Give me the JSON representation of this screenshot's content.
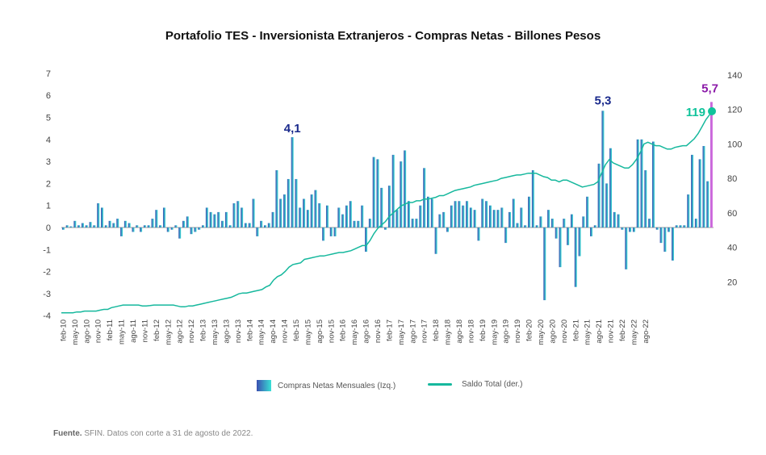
{
  "chart_data": {
    "type": "bar",
    "title": "Portafolio TES - Inversionista Extranjeros - Compras Netas - Billones Pesos",
    "x_tick_labels": [
      "feb-10",
      "may-10",
      "ago-10",
      "nov-10",
      "feb-11",
      "may-11",
      "ago-11",
      "nov-11",
      "feb-12",
      "may-12",
      "ago-12",
      "nov-12",
      "feb-13",
      "may-13",
      "ago-13",
      "nov-13",
      "feb-14",
      "may-14",
      "ago-14",
      "nov-14",
      "feb-15",
      "may-15",
      "ago-15",
      "nov-15",
      "feb-16",
      "may-16",
      "ago-16",
      "nov-16",
      "feb-17",
      "may-17",
      "ago-17",
      "nov-17",
      "feb-18",
      "may-18",
      "ago-18",
      "nov-18",
      "feb-19",
      "may-19",
      "ago-19",
      "nov-19",
      "feb-20",
      "may-20",
      "ago-20",
      "nov-20",
      "feb-21",
      "may-21",
      "ago-21",
      "nov-21",
      "feb-22",
      "may-22",
      "ago-22"
    ],
    "left_axis": {
      "ylim": [
        -4,
        7
      ],
      "ticks": [
        "-4",
        "-3",
        "-2",
        "-1",
        "0",
        "1",
        "2",
        "3",
        "4",
        "5",
        "6",
        "7"
      ]
    },
    "right_axis": {
      "ylim": [
        0,
        140
      ],
      "ticks": [
        "20",
        "40",
        "60",
        "80",
        "100",
        "120",
        "140"
      ]
    },
    "series": [
      {
        "name": "Compras Netas Mensuales (Izq.)",
        "axis": "left",
        "values": [
          -0.1,
          0.1,
          0.05,
          0.3,
          0.1,
          0.2,
          0.1,
          0.25,
          0.1,
          1.1,
          0.9,
          0.1,
          0.3,
          0.2,
          0.4,
          -0.4,
          0.3,
          0.2,
          -0.2,
          0.1,
          -0.2,
          0.1,
          0.1,
          0.4,
          0.8,
          0.1,
          0.9,
          -0.2,
          -0.1,
          0.1,
          -0.5,
          0.3,
          0.5,
          -0.3,
          -0.2,
          -0.1,
          0.1,
          0.9,
          0.7,
          0.6,
          0.7,
          0.3,
          0.7,
          0.1,
          1.1,
          1.2,
          0.9,
          0.2,
          0.2,
          1.3,
          -0.4,
          0.3,
          0.1,
          0.2,
          0.7,
          2.6,
          1.3,
          1.5,
          2.2,
          4.1,
          2.2,
          0.9,
          1.3,
          0.8,
          1.5,
          1.7,
          1.1,
          -0.6,
          1.0,
          -0.4,
          -0.4,
          0.9,
          0.6,
          1.0,
          1.2,
          0.3,
          0.3,
          1.0,
          -1.1,
          0.4,
          3.2,
          3.1,
          1.8,
          -0.1,
          1.9,
          3.3,
          0.8,
          3.0,
          3.5,
          1.2,
          0.4,
          0.4,
          1.0,
          2.7,
          1.4,
          1.3,
          -1.2,
          0.6,
          0.7,
          -0.2,
          1.0,
          1.2,
          1.2,
          1.0,
          1.2,
          0.9,
          0.8,
          -0.6,
          1.3,
          1.2,
          1.0,
          0.8,
          0.8,
          0.9,
          -0.7,
          0.7,
          1.3,
          0.2,
          0.9,
          0.1,
          1.4,
          2.6,
          0.1,
          0.5,
          -3.3,
          0.8,
          0.4,
          -0.5,
          -1.8,
          0.4,
          -0.8,
          0.6,
          -2.7,
          -1.3,
          0.5,
          1.4,
          -0.4,
          0.1,
          2.9,
          5.3,
          2.0,
          3.6,
          0.7,
          0.6,
          -0.1,
          -1.9,
          -0.2,
          -0.2,
          4.0,
          4.0,
          2.6,
          0.4,
          3.9,
          -0.1,
          -0.7,
          -1.1,
          -0.2,
          -1.5,
          0.1,
          0.1,
          0.1,
          1.5,
          3.3,
          0.4,
          3.1,
          3.7,
          2.1,
          5.7
        ]
      },
      {
        "name": "Saldo Total (der.)",
        "axis": "right",
        "type": "line",
        "values": [
          2,
          2,
          2,
          2,
          2.5,
          2.5,
          3,
          3,
          3,
          3,
          3.5,
          4,
          4,
          5,
          5.5,
          6,
          6.5,
          6.5,
          6.5,
          6.5,
          6.5,
          6,
          6,
          6.2,
          6.5,
          6.5,
          6.5,
          6.5,
          6.5,
          6.5,
          6,
          5.5,
          5.5,
          6,
          6,
          6.5,
          7,
          7.5,
          8,
          8.5,
          9,
          9.5,
          10,
          10.5,
          11,
          12,
          13,
          13.5,
          13.5,
          14,
          14.5,
          15,
          15.5,
          17,
          18,
          21,
          23,
          24,
          26,
          28.5,
          30,
          30.5,
          31,
          33,
          33.5,
          34,
          34.5,
          35,
          35,
          35.5,
          36,
          36.5,
          37,
          37,
          37.5,
          38,
          39,
          40,
          41,
          41,
          44,
          48,
          51,
          53,
          55,
          58,
          60,
          62,
          64,
          65,
          66,
          66,
          67,
          67,
          68,
          68,
          68.5,
          69,
          70,
          70,
          71,
          72,
          73,
          73.5,
          74,
          74.5,
          75,
          76,
          76.5,
          77,
          77.5,
          78,
          78.5,
          79,
          80,
          80.5,
          81,
          81.5,
          82,
          82,
          82.5,
          83,
          83,
          83,
          82,
          81,
          80.5,
          79,
          79,
          78,
          79,
          79,
          78,
          77,
          76,
          75,
          75.5,
          76,
          76.5,
          78,
          83,
          88,
          91,
          89,
          88,
          87,
          86,
          86,
          88,
          91,
          95,
          100,
          101,
          100,
          99,
          99,
          98,
          97,
          97,
          98,
          98.5,
          99,
          99,
          101,
          103,
          106,
          110,
          114,
          117,
          119
        ]
      }
    ],
    "annotations": [
      "4,1",
      "5,3",
      "5,7",
      "119"
    ],
    "legend_position": "bottom"
  },
  "legend": {
    "bars_label": "Compras Netas Mensuales (Izq.)",
    "line_label": "Saldo Total (der.)"
  },
  "source": {
    "label": "Fuente.",
    "text": " SFIN. Datos con corte a 31 de agosto de 2022."
  },
  "colors": {
    "bar_dark": "#3a4fb0",
    "bar_light": "#39e0d6",
    "line": "#16b89d",
    "last_bar": "#b64ad0",
    "annotation_blue": "#1a2a8c",
    "annotation_purple": "#8b1aa8",
    "annotation_teal": "#10c39b"
  }
}
